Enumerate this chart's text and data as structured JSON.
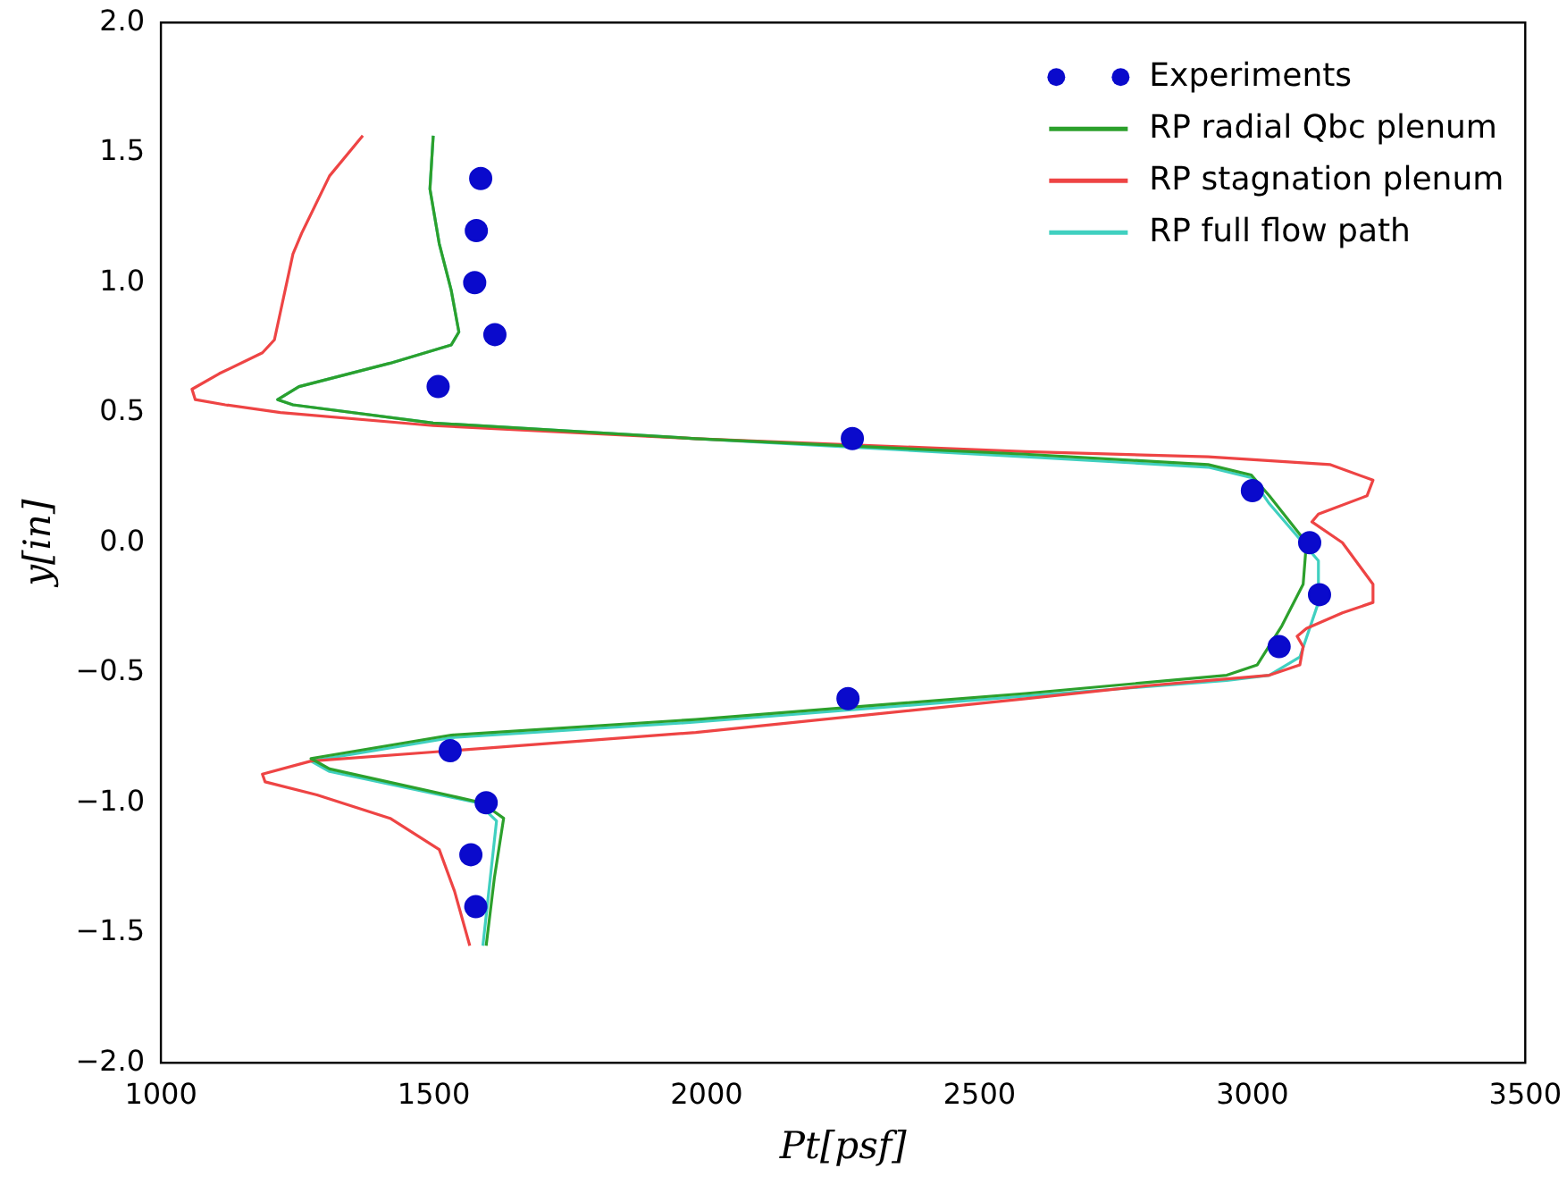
{
  "chart_data": {
    "type": "line",
    "xlabel": "Pt[psf]",
    "ylabel": "y[in]",
    "xlim": [
      1000,
      3500
    ],
    "xticks": [
      1000,
      1500,
      2000,
      2500,
      3000,
      3500
    ],
    "ylim": [
      -2.0,
      2.0
    ],
    "yticks": [
      {
        "value": -2.0,
        "label": "−2.0"
      },
      {
        "value": -1.5,
        "label": "−1.5"
      },
      {
        "value": -1.0,
        "label": "−1.0"
      },
      {
        "value": -0.5,
        "label": "−0.5"
      },
      {
        "value": 0.0,
        "label": "0.0"
      },
      0.5,
      {
        "value": 1.0,
        "label": "1.0"
      },
      1.5,
      {
        "value": 2.0,
        "label": "2.0"
      }
    ],
    "grid": false,
    "legend": "top right",
    "series": [
      {
        "name": "Experiments",
        "type": "scatter",
        "marker": "circle",
        "color": "#0a0acc",
        "x": [
          1586,
          1578,
          1575,
          1612,
          1508,
          2267,
          3000,
          3105,
          3123,
          3049,
          2259,
          1530,
          1596,
          1568,
          1577
        ],
        "values": [
          1.4,
          1.2,
          1.0,
          0.8,
          0.6,
          0.4,
          0.2,
          0.0,
          -0.2,
          -0.4,
          -0.6,
          -0.8,
          -1.0,
          -1.2,
          -1.4
        ]
      },
      {
        "name": "RP radial Qbc plenum",
        "type": "line",
        "color": "#2ca02c",
        "x": [
          1499,
          1493,
          1510,
          1532,
          1546,
          1532,
          1420,
          1253,
          1214,
          1242,
          1499,
          1980,
          2584,
          2919,
          2998,
          3031,
          3099,
          3093,
          3054,
          3009,
          2953,
          2584,
          1980,
          1532,
          1275,
          1309,
          1588,
          1628,
          1611,
          1596
        ],
        "values": [
          1.565,
          1.36,
          1.15,
          0.97,
          0.81,
          0.76,
          0.69,
          0.6,
          0.55,
          0.53,
          0.46,
          0.4,
          0.34,
          0.3,
          0.26,
          0.18,
          0.0,
          -0.16,
          -0.32,
          -0.47,
          -0.51,
          -0.58,
          -0.68,
          -0.74,
          -0.83,
          -0.87,
          -1.0,
          -1.06,
          -1.29,
          -1.55
        ]
      },
      {
        "name": "RP stagnation plenum",
        "type": "line",
        "color": "#ee4444",
        "x": [
          1370,
          1309,
          1258,
          1242,
          1208,
          1186,
          1107,
          1057,
          1063,
          1118,
          1219,
          1499,
          1980,
          2584,
          2919,
          3143,
          3221,
          3210,
          3121,
          3109,
          3165,
          3221,
          3221,
          3165,
          3099,
          3082,
          3093,
          3087,
          3031,
          2808,
          2584,
          1980,
          1532,
          1275,
          1186,
          1191,
          1286,
          1420,
          1510,
          1538,
          1566
        ],
        "values": [
          1.565,
          1.41,
          1.19,
          1.11,
          0.78,
          0.73,
          0.65,
          0.59,
          0.55,
          0.53,
          0.5,
          0.45,
          0.4,
          0.35,
          0.33,
          0.3,
          0.24,
          0.18,
          0.11,
          0.08,
          0.0,
          -0.16,
          -0.23,
          -0.27,
          -0.33,
          -0.36,
          -0.4,
          -0.47,
          -0.51,
          -0.55,
          -0.6,
          -0.73,
          -0.8,
          -0.84,
          -0.89,
          -0.92,
          -0.97,
          -1.06,
          -1.18,
          -1.34,
          -1.55
        ]
      },
      {
        "name": "RP full flow path",
        "type": "line",
        "color": "#40d0c0",
        "x": [
          1499,
          1493,
          1510,
          1532,
          1546,
          1532,
          1420,
          1253,
          1214,
          1242,
          1499,
          1980,
          2584,
          2919,
          2998,
          3031,
          3121,
          3121,
          3087,
          3031,
          2953,
          2584,
          1980,
          1532,
          1275,
          1309,
          1580,
          1615,
          1603,
          1590
        ],
        "values": [
          1.565,
          1.36,
          1.15,
          0.97,
          0.81,
          0.76,
          0.69,
          0.6,
          0.55,
          0.53,
          0.46,
          0.4,
          0.33,
          0.29,
          0.25,
          0.15,
          -0.07,
          -0.23,
          -0.44,
          -0.51,
          -0.53,
          -0.59,
          -0.69,
          -0.75,
          -0.84,
          -0.88,
          -1.0,
          -1.07,
          -1.3,
          -1.55
        ]
      }
    ]
  }
}
